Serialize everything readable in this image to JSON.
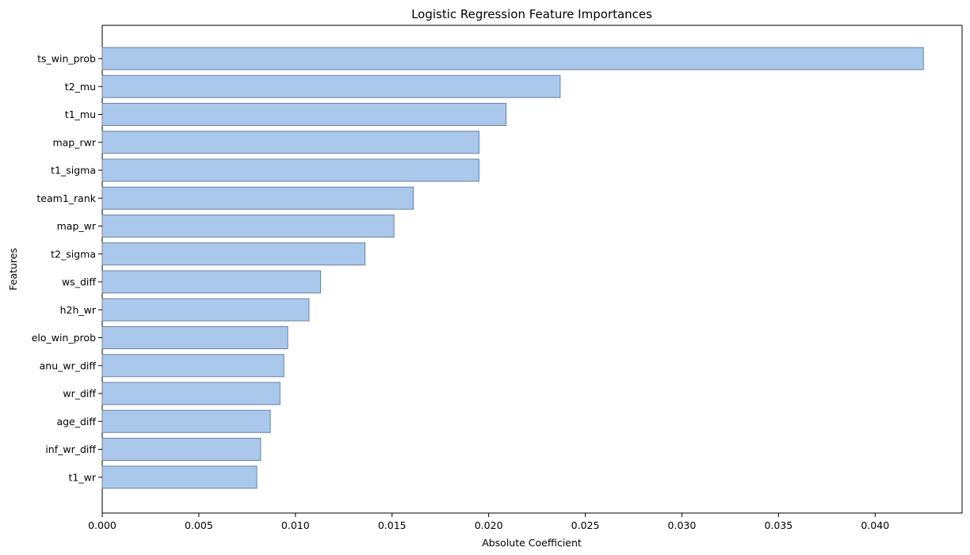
{
  "chart_data": {
    "type": "bar",
    "orientation": "horizontal",
    "title": "Logistic Regression Feature Importances",
    "xlabel": "Absolute Coefficient",
    "ylabel": "Features",
    "xlim": [
      0,
      0.0445
    ],
    "xticks": [
      0.0,
      0.005,
      0.01,
      0.015,
      0.02,
      0.025,
      0.03,
      0.035,
      0.04
    ],
    "xtick_labels": [
      "0.000",
      "0.005",
      "0.010",
      "0.015",
      "0.020",
      "0.025",
      "0.030",
      "0.035",
      "0.040"
    ],
    "grid": false,
    "bar_color": "#aac8ec",
    "bar_edge_color": "#6f8299",
    "categories": [
      "ts_win_prob",
      "t2_mu",
      "t1_mu",
      "map_rwr",
      "t1_sigma",
      "team1_rank",
      "map_wr",
      "t2_sigma",
      "ws_diff",
      "h2h_wr",
      "elo_win_prob",
      "anu_wr_diff",
      "wr_diff",
      "age_diff",
      "inf_wr_diff",
      "t1_wr"
    ],
    "values": [
      0.0425,
      0.0237,
      0.0209,
      0.0195,
      0.0195,
      0.0161,
      0.0151,
      0.0136,
      0.0113,
      0.0107,
      0.0096,
      0.0094,
      0.0092,
      0.0087,
      0.0082,
      0.008
    ]
  }
}
